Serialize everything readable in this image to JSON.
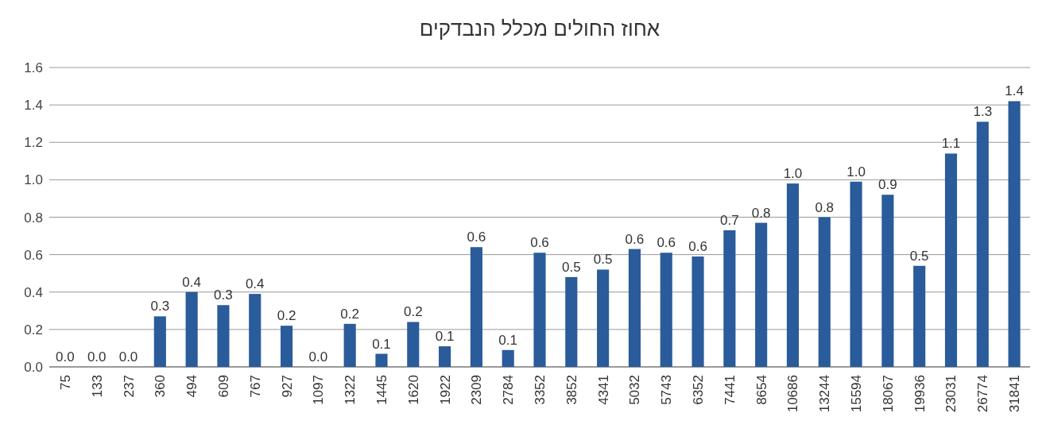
{
  "chart_data": {
    "type": "bar",
    "title": "אחוז החולים מכלל הנבדקים",
    "categories": [
      "75",
      "133",
      "237",
      "360",
      "494",
      "609",
      "767",
      "927",
      "1097",
      "1322",
      "1445",
      "1620",
      "1922",
      "2309",
      "2784",
      "3352",
      "3852",
      "4341",
      "5032",
      "5743",
      "6352",
      "7441",
      "8654",
      "10686",
      "13244",
      "15594",
      "18067",
      "19936",
      "23031",
      "26774",
      "31841"
    ],
    "values": [
      0.0,
      0.0,
      0.0,
      0.27,
      0.4,
      0.33,
      0.39,
      0.22,
      0.0,
      0.23,
      0.07,
      0.24,
      0.11,
      0.64,
      0.09,
      0.61,
      0.48,
      0.52,
      0.63,
      0.61,
      0.59,
      0.73,
      0.77,
      0.98,
      0.8,
      0.99,
      0.92,
      0.54,
      1.14,
      1.31,
      1.42
    ],
    "value_labels": [
      "0.0",
      "0.0",
      "0.0",
      "0.3",
      "0.4",
      "0.3",
      "0.4",
      "0.2",
      "0.0",
      "0.2",
      "0.1",
      "0.2",
      "0.1",
      "0.6",
      "0.1",
      "0.6",
      "0.5",
      "0.5",
      "0.6",
      "0.6",
      "0.6",
      "0.7",
      "0.8",
      "1.0",
      "0.8",
      "1.0",
      "0.9",
      "0.5",
      "1.1",
      "1.3",
      "1.4"
    ],
    "color": "#2a5b9a",
    "ylim": [
      0,
      1.6
    ],
    "yticks": [
      {
        "value": 0,
        "label": "0.0"
      },
      {
        "value": 0.2,
        "label": "0.2"
      },
      {
        "value": 0.4,
        "label": "0.4"
      },
      {
        "value": 0.6,
        "label": "0.6"
      },
      {
        "value": 0.8,
        "label": "0.8"
      },
      {
        "value": 1,
        "label": "1.0"
      },
      {
        "value": 1.2,
        "label": "1.2"
      },
      {
        "value": 1.4,
        "label": "1.4"
      },
      {
        "value": 1.6,
        "label": "1.6"
      }
    ],
    "grid": "y"
  }
}
